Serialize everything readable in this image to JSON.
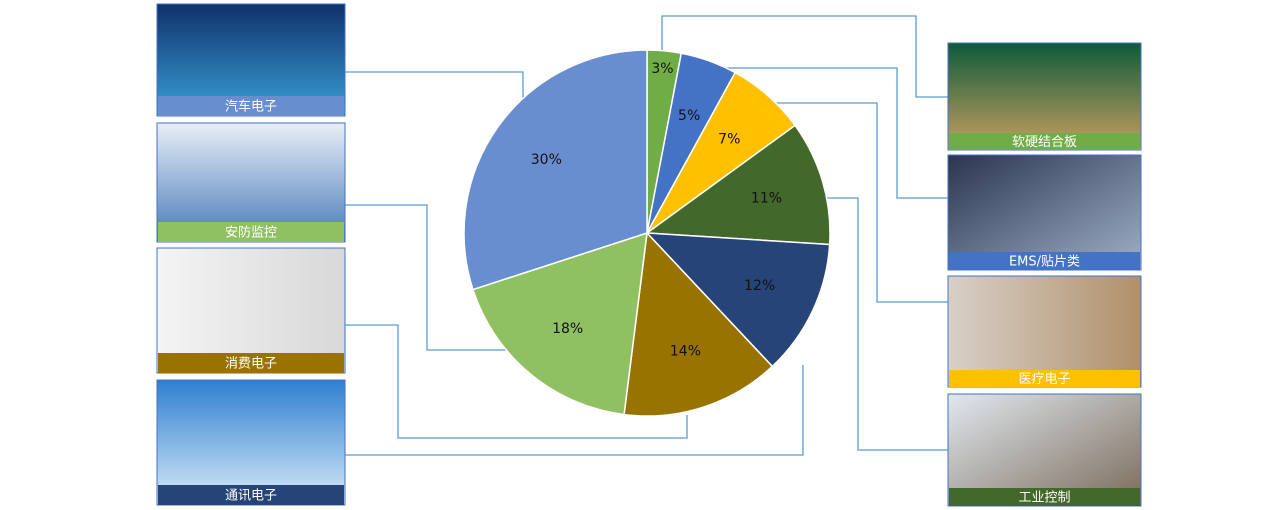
{
  "chart_data": {
    "type": "pie",
    "categories": [
      "软硬结合板",
      "EMS/贴片类",
      "医疗电子",
      "工业控制",
      "通讯电子",
      "消费电子",
      "安防监控",
      "汽车电子"
    ],
    "values": [
      3,
      5,
      7,
      11,
      12,
      14,
      18,
      30
    ],
    "value_labels": [
      "3%",
      "5%",
      "7%",
      "11%",
      "12%",
      "14%",
      "18%",
      "30%"
    ],
    "colors": [
      "#70ad47",
      "#4472c4",
      "#ffc000",
      "#43682b",
      "#264478",
      "#997300",
      "#8fc163",
      "#698ed0"
    ]
  }
}
